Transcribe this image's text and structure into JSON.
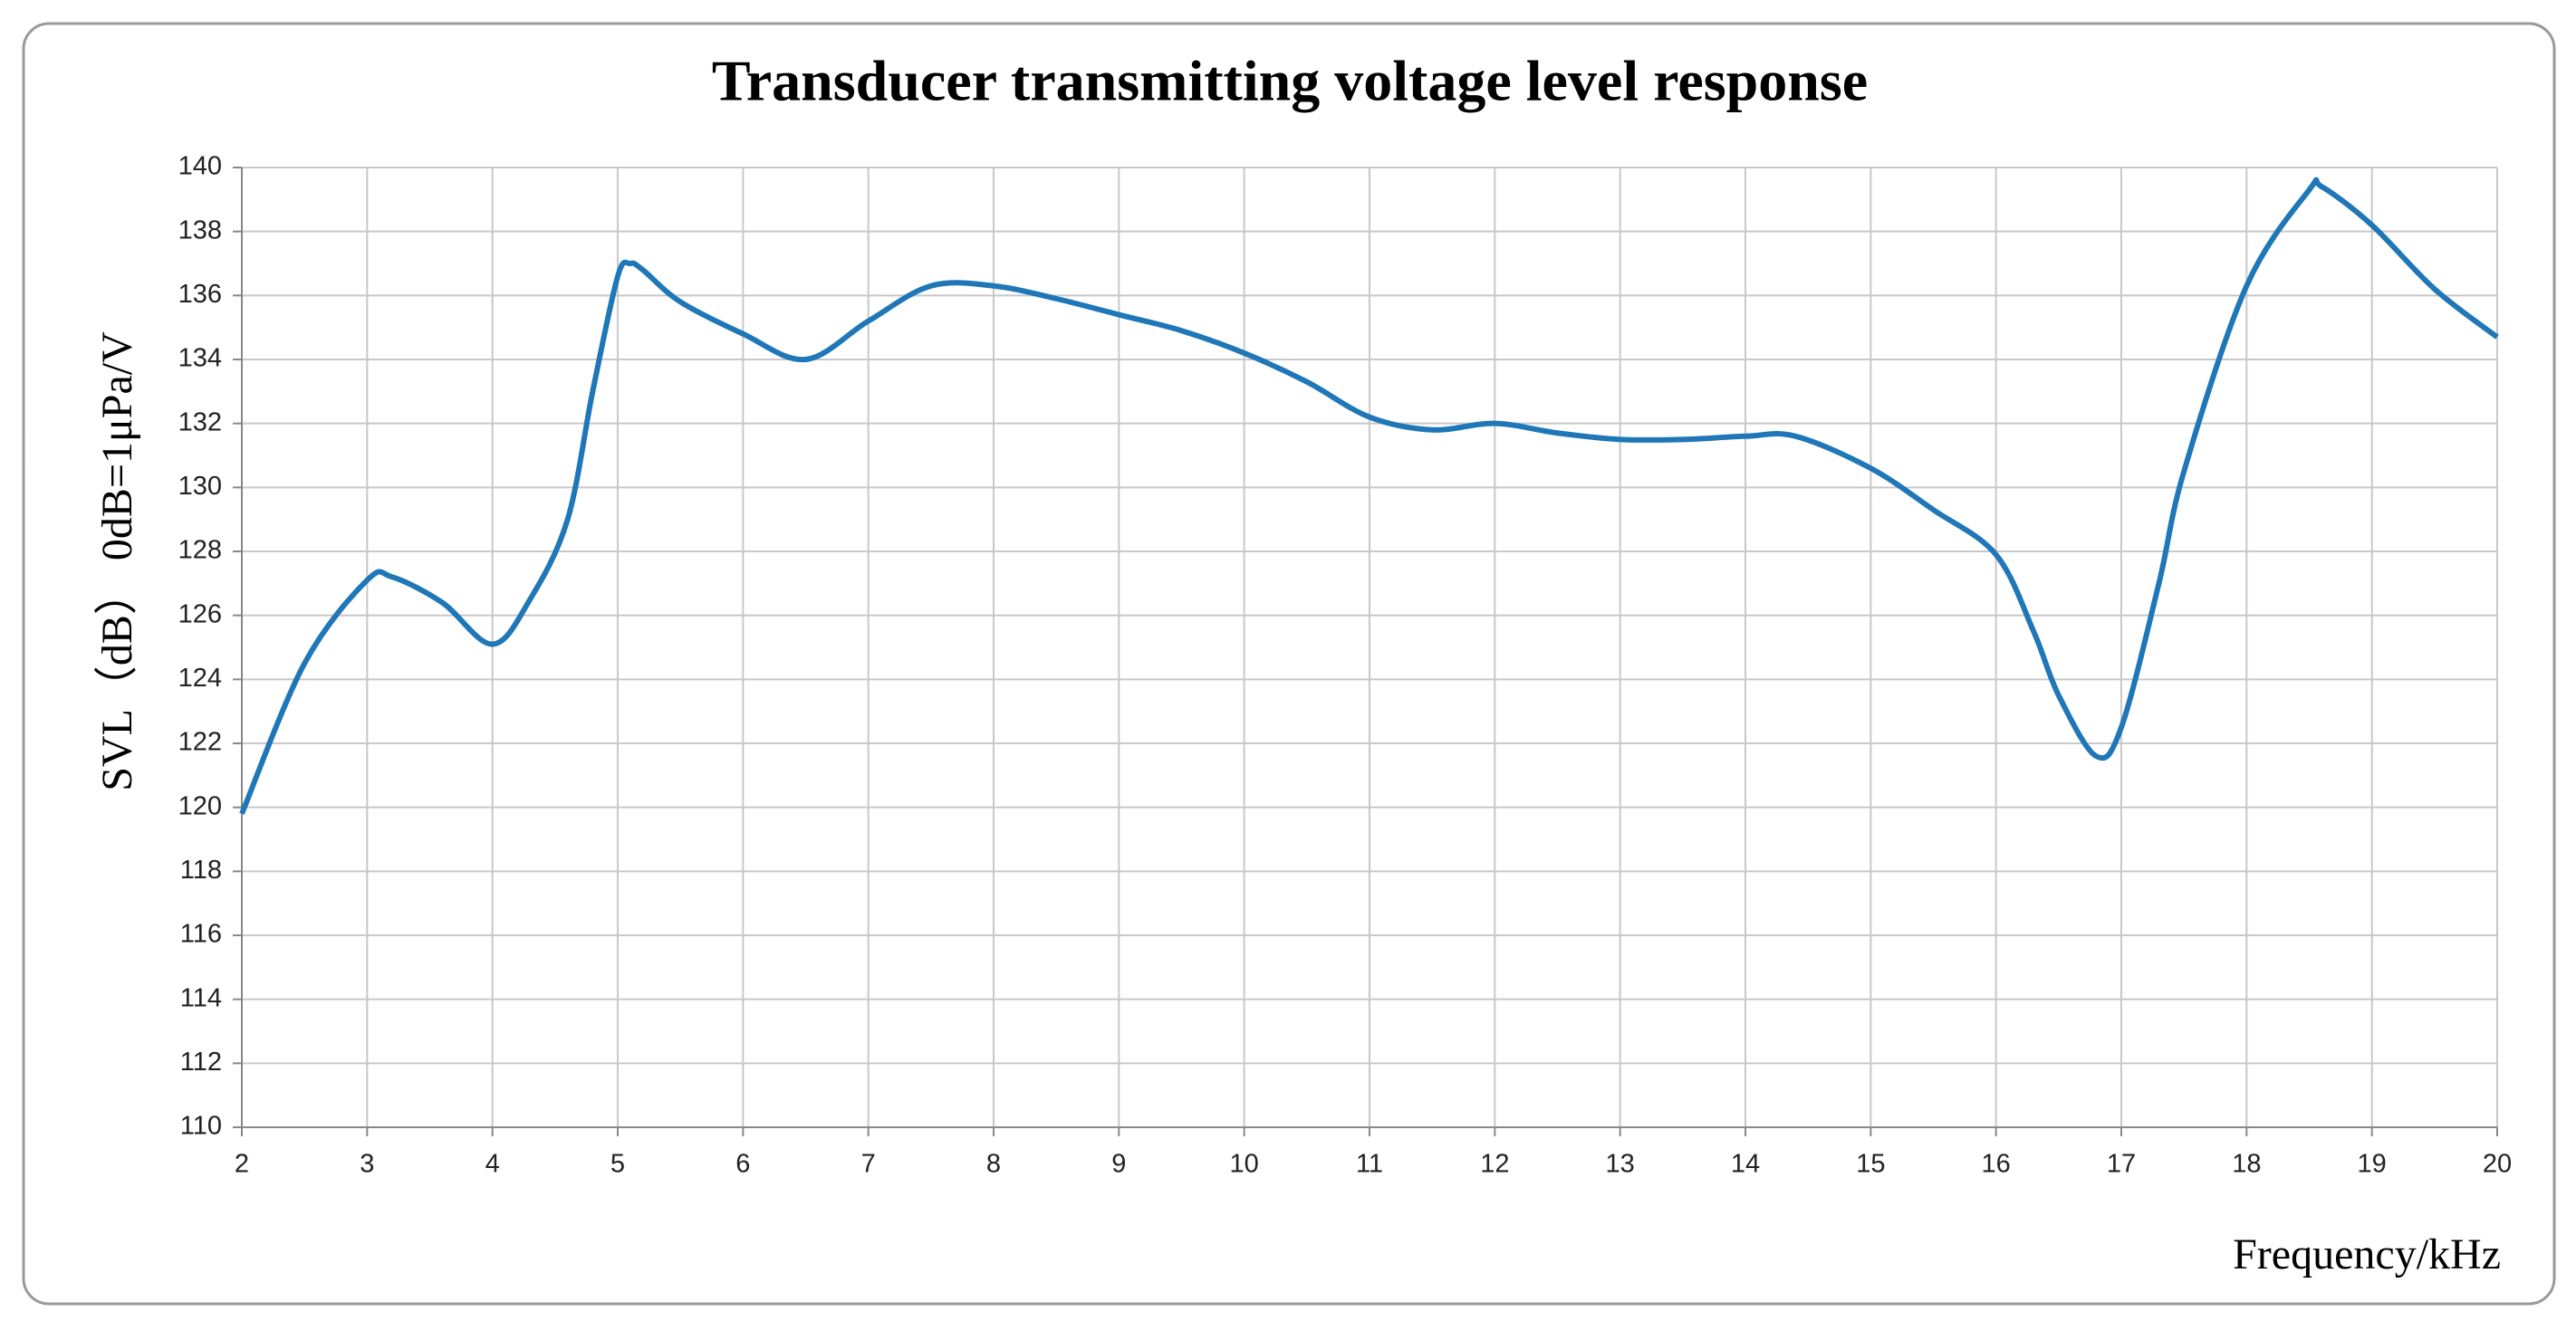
{
  "chart_data": {
    "type": "line",
    "title": "Transducer transmitting voltage level response",
    "x_label": "Frequency/kHz",
    "y_label": "SVL（dB）  0dB=1μPa/V",
    "x": [
      2,
      2.5,
      3,
      3.2,
      3.6,
      4,
      4.3,
      4.6,
      4.8,
      5,
      5.1,
      5.2,
      5.5,
      6,
      6.5,
      7,
      7.5,
      8,
      8.5,
      9,
      9.5,
      10,
      10.5,
      11,
      11.5,
      12,
      12.5,
      13,
      13.5,
      14,
      14.4,
      15,
      15.5,
      16,
      16.3,
      16.5,
      16.8,
      17,
      17.3,
      17.5,
      18,
      18.5,
      18.6,
      19,
      19.5,
      20
    ],
    "series": [
      {
        "color": "#1f77b8",
        "values": [
          119.8,
          124.5,
          127.1,
          127.2,
          126.4,
          125.1,
          126.5,
          129,
          133,
          136.6,
          137,
          136.8,
          135.8,
          134.8,
          134,
          135.2,
          136.3,
          136.3,
          135.9,
          135.4,
          134.9,
          134.2,
          133.3,
          132.2,
          131.8,
          132,
          131.7,
          131.5,
          131.5,
          131.6,
          131.6,
          130.6,
          129.3,
          127.9,
          125.5,
          123.5,
          121.6,
          122.5,
          127,
          130.5,
          136.3,
          139.3,
          139.4,
          138.2,
          136.2,
          134.7
        ]
      }
    ],
    "xlim": [
      2,
      20
    ],
    "xticks": [
      2,
      3,
      4,
      5,
      6,
      7,
      8,
      9,
      10,
      11,
      12,
      13,
      14,
      15,
      16,
      17,
      18,
      19,
      20
    ],
    "ylim": [
      110,
      140
    ],
    "yticks": [
      110,
      112,
      114,
      116,
      118,
      120,
      122,
      124,
      126,
      128,
      130,
      132,
      134,
      136,
      138,
      140
    ],
    "grid": true
  }
}
